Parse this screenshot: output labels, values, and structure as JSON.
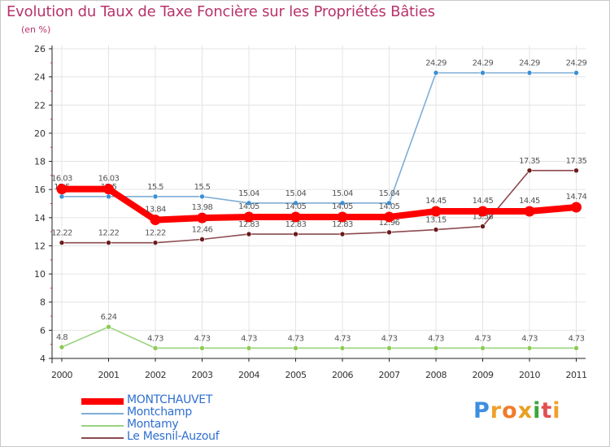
{
  "chart_data": {
    "type": "line",
    "title": "Evolution du Taux de Taxe Foncière sur les Propriétés Bâties",
    "ylabel": "(en %)",
    "xlabel": "",
    "ylim": [
      4,
      26
    ],
    "y_ticks": [
      "4",
      "6",
      "8",
      "10",
      "12",
      "14",
      "16",
      "18",
      "20",
      "22",
      "24",
      "26"
    ],
    "categories": [
      "2000",
      "2001",
      "2002",
      "2003",
      "2004",
      "2005",
      "2006",
      "2007",
      "2008",
      "2009",
      "2010",
      "2011"
    ],
    "series": [
      {
        "name": "Montamy",
        "color": "#99d37e",
        "dot_color": "#8ccb52",
        "values": [
          4.8,
          6.24,
          4.73,
          4.73,
          4.73,
          4.73,
          4.73,
          4.73,
          4.73,
          4.73,
          4.73,
          4.73
        ],
        "labels": [
          "4.8",
          "6.24",
          "4.73",
          "4.73",
          "4.73",
          "4.73",
          "4.73",
          "4.73",
          "4.73",
          "4.73",
          "4.73",
          "4.73"
        ]
      },
      {
        "name": "Le Mesnil-Auzouf",
        "color": "#8c4a50",
        "dot_color": "#6a1a1a",
        "values": [
          12.22,
          12.22,
          12.22,
          12.46,
          12.83,
          12.83,
          12.83,
          12.96,
          13.15,
          13.38,
          17.35,
          17.35
        ],
        "labels": [
          "12.22",
          "12.22",
          "12.22",
          "12.46",
          "12.83",
          "12.83",
          "12.83",
          "12.96",
          "13.15",
          "13.38",
          "17.35",
          "17.35"
        ]
      },
      {
        "name": "Montchamp",
        "color": "#7eaed6",
        "dot_color": "#3b8fd4",
        "values": [
          15.5,
          15.5,
          15.5,
          15.5,
          15.04,
          15.04,
          15.04,
          15.04,
          24.29,
          24.29,
          24.29,
          24.29
        ],
        "labels": [
          "15.5",
          "15.5",
          "15.5",
          "15.5",
          "15.04",
          "15.04",
          "15.04",
          "15.04",
          "24.29",
          "24.29",
          "24.29",
          "24.29"
        ]
      },
      {
        "name": "MONTCHAUVET",
        "color": "#ff0000",
        "dot_color": "#ff0000",
        "values": [
          16.03,
          16.03,
          13.84,
          13.98,
          14.05,
          14.05,
          14.05,
          14.05,
          14.45,
          14.45,
          14.45,
          14.74
        ],
        "labels": [
          "16.03",
          "16.03",
          "13.84",
          "13.98",
          "14.05",
          "14.05",
          "14.05",
          "14.05",
          "14.45",
          "14.45",
          "14.45",
          "14.74"
        ]
      }
    ],
    "legend": [
      "MONTCHAUVET",
      "Montchamp",
      "Montamy",
      "Le Mesnil-Auzouf"
    ]
  },
  "brand": {
    "letters": [
      "P",
      "r",
      "o",
      "x",
      "i",
      "t",
      "i"
    ],
    "colors": [
      "#3d8ee0",
      "#f0a02a",
      "#f07b2a",
      "#e8a020",
      "#39a839",
      "#e05050",
      "#f0a02a"
    ]
  }
}
